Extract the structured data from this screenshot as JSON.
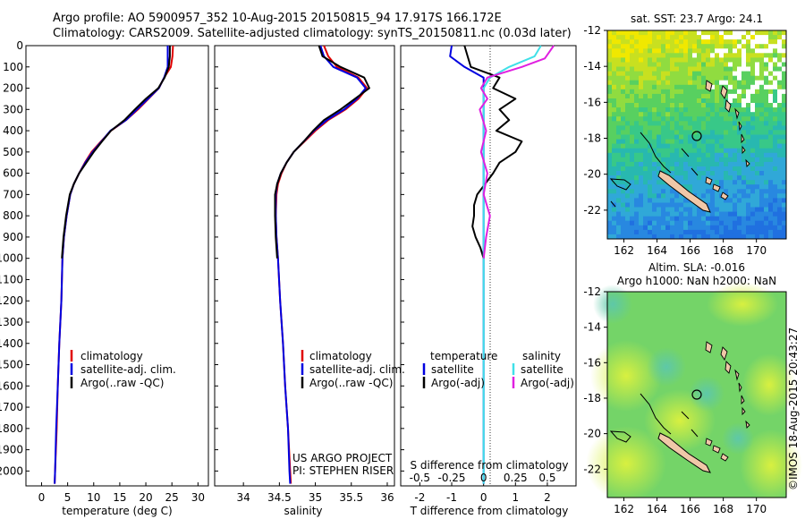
{
  "header": {
    "line1": "Argo profile: AO 5900957_352 10-Aug-2015 20150815_94 17.917S 166.172E",
    "line2": "Climatology: CARS2009. Satellite-adjusted climatology: synTS_20150811.nc (0.03d later)"
  },
  "depth_axis": {
    "ticks": [
      0,
      100,
      200,
      300,
      400,
      500,
      600,
      700,
      800,
      900,
      1000,
      1100,
      1200,
      1300,
      1400,
      1500,
      1600,
      1700,
      1800,
      1900,
      2000
    ],
    "range": [
      0,
      2070
    ]
  },
  "colors": {
    "climatology": "#e00000",
    "satellite": "#0000e0",
    "argo": "#000000",
    "sal_satellite": "#40e0e8",
    "sal_argo": "#e020e0"
  },
  "panels": {
    "temperature": {
      "xlabel": "temperature (deg C)",
      "xticks": [
        "0",
        "5",
        "10",
        "15",
        "20",
        "25",
        "30"
      ],
      "legend": [
        "climatology",
        "satellite-adj. clim.",
        "Argo(..raw -QC)"
      ]
    },
    "salinity": {
      "xlabel": "salinity",
      "xticks": [
        "34",
        "34.5",
        "35",
        "35.5",
        "36"
      ],
      "legend": [
        "climatology",
        "satellite-adj. clim.",
        "Argo(..raw -QC)"
      ],
      "credit1": "US ARGO PROJECT",
      "credit2": "PI: STEPHEN RISER"
    },
    "difference": {
      "xlabel": "T difference from climatology",
      "xticks": [
        "-2",
        "-1",
        "0",
        "1",
        "2"
      ],
      "top_label": "S difference from climatology",
      "top_ticks": [
        "-0.5",
        "-0.25",
        "0",
        "0.25",
        "0.5"
      ],
      "legend_t_title": "temperature",
      "legend_s_title": "salinity",
      "legend_t": [
        "satellite",
        "Argo(-adj)"
      ],
      "legend_s": [
        "satellite",
        "Argo(-adj)"
      ]
    }
  },
  "maps": {
    "sst": {
      "title": "sat. SST: 23.7 Argo: 24.1",
      "yticks": [
        "-12",
        "-14",
        "-16",
        "-18",
        "-20",
        "-22"
      ],
      "xticks": [
        "162",
        "164",
        "166",
        "168",
        "170"
      ]
    },
    "sla": {
      "title1": "Altim. SLA: -0.016",
      "title2": "Argo h1000: NaN h2000: NaN",
      "yticks": [
        "-12",
        "-14",
        "-16",
        "-18",
        "-20",
        "-22"
      ],
      "xticks": [
        "162",
        "164",
        "166",
        "168",
        "170"
      ]
    }
  },
  "stamp": "©IMOS 18-Aug-2015 20:43:27",
  "chart_data": [
    {
      "type": "line",
      "title": "",
      "xlabel": "temperature (deg C)",
      "ylabel": "",
      "xlim": [
        -3,
        32
      ],
      "ylim": [
        2070,
        0
      ],
      "y_is_depth": true,
      "series": [
        {
          "name": "climatology",
          "points": [
            [
              25.2,
              0
            ],
            [
              25.1,
              50
            ],
            [
              24.8,
              100
            ],
            [
              23.5,
              150
            ],
            [
              22.5,
              200
            ],
            [
              20.5,
              250
            ],
            [
              18.5,
              300
            ],
            [
              16.2,
              350
            ],
            [
              13.3,
              400
            ],
            [
              11.4,
              450
            ],
            [
              9.6,
              500
            ],
            [
              8.3,
              550
            ],
            [
              7.2,
              600
            ],
            [
              6.2,
              650
            ],
            [
              5.5,
              700
            ],
            [
              4.8,
              800
            ],
            [
              4.3,
              900
            ],
            [
              4.0,
              1000
            ],
            [
              3.8,
              1200
            ],
            [
              3.4,
              1400
            ],
            [
              3.1,
              1600
            ],
            [
              2.9,
              1800
            ],
            [
              2.6,
              2000
            ],
            [
              2.5,
              2060
            ]
          ]
        },
        {
          "name": "satellite-adj. clim.",
          "points": [
            [
              24.2,
              0
            ],
            [
              24.2,
              50
            ],
            [
              24.2,
              100
            ],
            [
              23.5,
              150
            ],
            [
              22.5,
              200
            ],
            [
              20.4,
              250
            ],
            [
              18.3,
              300
            ],
            [
              16.2,
              350
            ],
            [
              13.2,
              400
            ],
            [
              11.5,
              450
            ],
            [
              9.8,
              500
            ],
            [
              8.4,
              550
            ],
            [
              7.2,
              600
            ],
            [
              6.2,
              650
            ],
            [
              5.5,
              700
            ],
            [
              4.8,
              800
            ],
            [
              4.3,
              900
            ],
            [
              4.0,
              1000
            ],
            [
              3.8,
              1200
            ],
            [
              3.4,
              1400
            ],
            [
              3.1,
              1600
            ],
            [
              2.8,
              1800
            ],
            [
              2.6,
              2000
            ],
            [
              2.5,
              2060
            ]
          ]
        },
        {
          "name": "Argo(..raw -QC)",
          "points": [
            [
              24.6,
              0
            ],
            [
              24.6,
              50
            ],
            [
              24.4,
              100
            ],
            [
              23.6,
              150
            ],
            [
              22.4,
              200
            ],
            [
              20.0,
              250
            ],
            [
              17.9,
              300
            ],
            [
              15.9,
              350
            ],
            [
              13.3,
              400
            ],
            [
              11.6,
              450
            ],
            [
              10.0,
              500
            ],
            [
              8.6,
              550
            ],
            [
              7.2,
              600
            ],
            [
              6.2,
              650
            ],
            [
              5.4,
              700
            ],
            [
              4.7,
              800
            ],
            [
              4.2,
              900
            ],
            [
              3.9,
              1000
            ]
          ]
        }
      ]
    },
    {
      "type": "line",
      "title": "",
      "xlabel": "salinity",
      "ylabel": "",
      "xlim": [
        33.6,
        36.1
      ],
      "ylim": [
        2070,
        0
      ],
      "y_is_depth": true,
      "series": [
        {
          "name": "climatology",
          "points": [
            [
              35.12,
              0
            ],
            [
              35.18,
              50
            ],
            [
              35.3,
              100
            ],
            [
              35.6,
              150
            ],
            [
              35.72,
              200
            ],
            [
              35.6,
              250
            ],
            [
              35.42,
              300
            ],
            [
              35.18,
              350
            ],
            [
              35.0,
              400
            ],
            [
              34.85,
              450
            ],
            [
              34.7,
              500
            ],
            [
              34.6,
              550
            ],
            [
              34.53,
              600
            ],
            [
              34.48,
              650
            ],
            [
              34.46,
              700
            ],
            [
              34.45,
              800
            ],
            [
              34.46,
              900
            ],
            [
              34.48,
              1000
            ],
            [
              34.51,
              1200
            ],
            [
              34.55,
              1400
            ],
            [
              34.58,
              1600
            ],
            [
              34.62,
              1800
            ],
            [
              34.65,
              2000
            ],
            [
              34.66,
              2060
            ]
          ]
        },
        {
          "name": "satellite-adj. clim.",
          "points": [
            [
              35.07,
              0
            ],
            [
              35.12,
              50
            ],
            [
              35.25,
              100
            ],
            [
              35.58,
              150
            ],
            [
              35.7,
              200
            ],
            [
              35.58,
              250
            ],
            [
              35.4,
              300
            ],
            [
              35.16,
              350
            ],
            [
              34.98,
              400
            ],
            [
              34.84,
              450
            ],
            [
              34.7,
              500
            ],
            [
              34.6,
              550
            ],
            [
              34.52,
              600
            ],
            [
              34.47,
              650
            ],
            [
              34.45,
              700
            ],
            [
              34.45,
              800
            ],
            [
              34.46,
              900
            ],
            [
              34.48,
              1000
            ],
            [
              34.51,
              1200
            ],
            [
              34.55,
              1400
            ],
            [
              34.58,
              1600
            ],
            [
              34.62,
              1800
            ],
            [
              34.64,
              2000
            ],
            [
              34.65,
              2060
            ]
          ]
        },
        {
          "name": "Argo(..raw -QC)",
          "points": [
            [
              35.05,
              0
            ],
            [
              35.1,
              50
            ],
            [
              35.35,
              100
            ],
            [
              35.68,
              150
            ],
            [
              35.75,
              200
            ],
            [
              35.55,
              250
            ],
            [
              35.35,
              300
            ],
            [
              35.12,
              350
            ],
            [
              34.97,
              400
            ],
            [
              34.84,
              450
            ],
            [
              34.7,
              500
            ],
            [
              34.6,
              550
            ],
            [
              34.52,
              600
            ],
            [
              34.47,
              650
            ],
            [
              34.44,
              700
            ],
            [
              34.44,
              800
            ],
            [
              34.45,
              900
            ],
            [
              34.47,
              1000
            ]
          ]
        }
      ]
    },
    {
      "type": "line",
      "title": "",
      "xlabel": "T difference from climatology",
      "x2label": "S difference from climatology",
      "ylabel": "",
      "xlim": [
        -2.6,
        2.9
      ],
      "x2lim": [
        -0.65,
        0.725
      ],
      "ylim": [
        2070,
        0
      ],
      "y_is_depth": true,
      "series": [
        {
          "name": "temperature satellite",
          "axis": "T",
          "points": [
            [
              -1.0,
              0
            ],
            [
              -1.05,
              50
            ],
            [
              -0.6,
              100
            ],
            [
              0.0,
              150
            ],
            [
              0.0,
              200
            ],
            [
              0.0,
              300
            ],
            [
              0.0,
              500
            ],
            [
              0.0,
              800
            ],
            [
              0.0,
              1000
            ],
            [
              0.0,
              1500
            ],
            [
              0.0,
              2060
            ]
          ]
        },
        {
          "name": "temperature Argo(-adj)",
          "axis": "T",
          "points": [
            [
              -0.6,
              0
            ],
            [
              -0.5,
              50
            ],
            [
              -0.4,
              100
            ],
            [
              0.5,
              150
            ],
            [
              0.3,
              200
            ],
            [
              1.0,
              250
            ],
            [
              0.5,
              300
            ],
            [
              0.8,
              350
            ],
            [
              0.4,
              400
            ],
            [
              1.2,
              450
            ],
            [
              1.0,
              500
            ],
            [
              0.5,
              550
            ],
            [
              0.3,
              600
            ],
            [
              0.05,
              650
            ],
            [
              -0.2,
              700
            ],
            [
              -0.3,
              750
            ],
            [
              -0.3,
              800
            ],
            [
              -0.35,
              850
            ],
            [
              -0.25,
              900
            ],
            [
              -0.1,
              950
            ],
            [
              0.0,
              1000
            ]
          ]
        },
        {
          "name": "salinity satellite",
          "axis": "S",
          "points": [
            [
              0.45,
              0
            ],
            [
              0.4,
              50
            ],
            [
              0.2,
              100
            ],
            [
              0.05,
              150
            ],
            [
              0.0,
              200
            ],
            [
              0.0,
              300
            ],
            [
              0.0,
              500
            ],
            [
              0.0,
              800
            ],
            [
              0.0,
              1000
            ],
            [
              0.0,
              1500
            ],
            [
              0.0,
              2060
            ]
          ]
        },
        {
          "name": "salinity Argo(-adj)",
          "axis": "S",
          "points": [
            [
              0.55,
              0
            ],
            [
              0.48,
              60
            ],
            [
              0.3,
              100
            ],
            [
              0.03,
              150
            ],
            [
              -0.02,
              200
            ],
            [
              0.03,
              250
            ],
            [
              -0.03,
              300
            ],
            [
              0.02,
              400
            ],
            [
              -0.02,
              500
            ],
            [
              0.03,
              600
            ],
            [
              0.0,
              700
            ],
            [
              0.05,
              800
            ],
            [
              0.02,
              900
            ],
            [
              0.0,
              1000
            ]
          ]
        }
      ]
    }
  ]
}
